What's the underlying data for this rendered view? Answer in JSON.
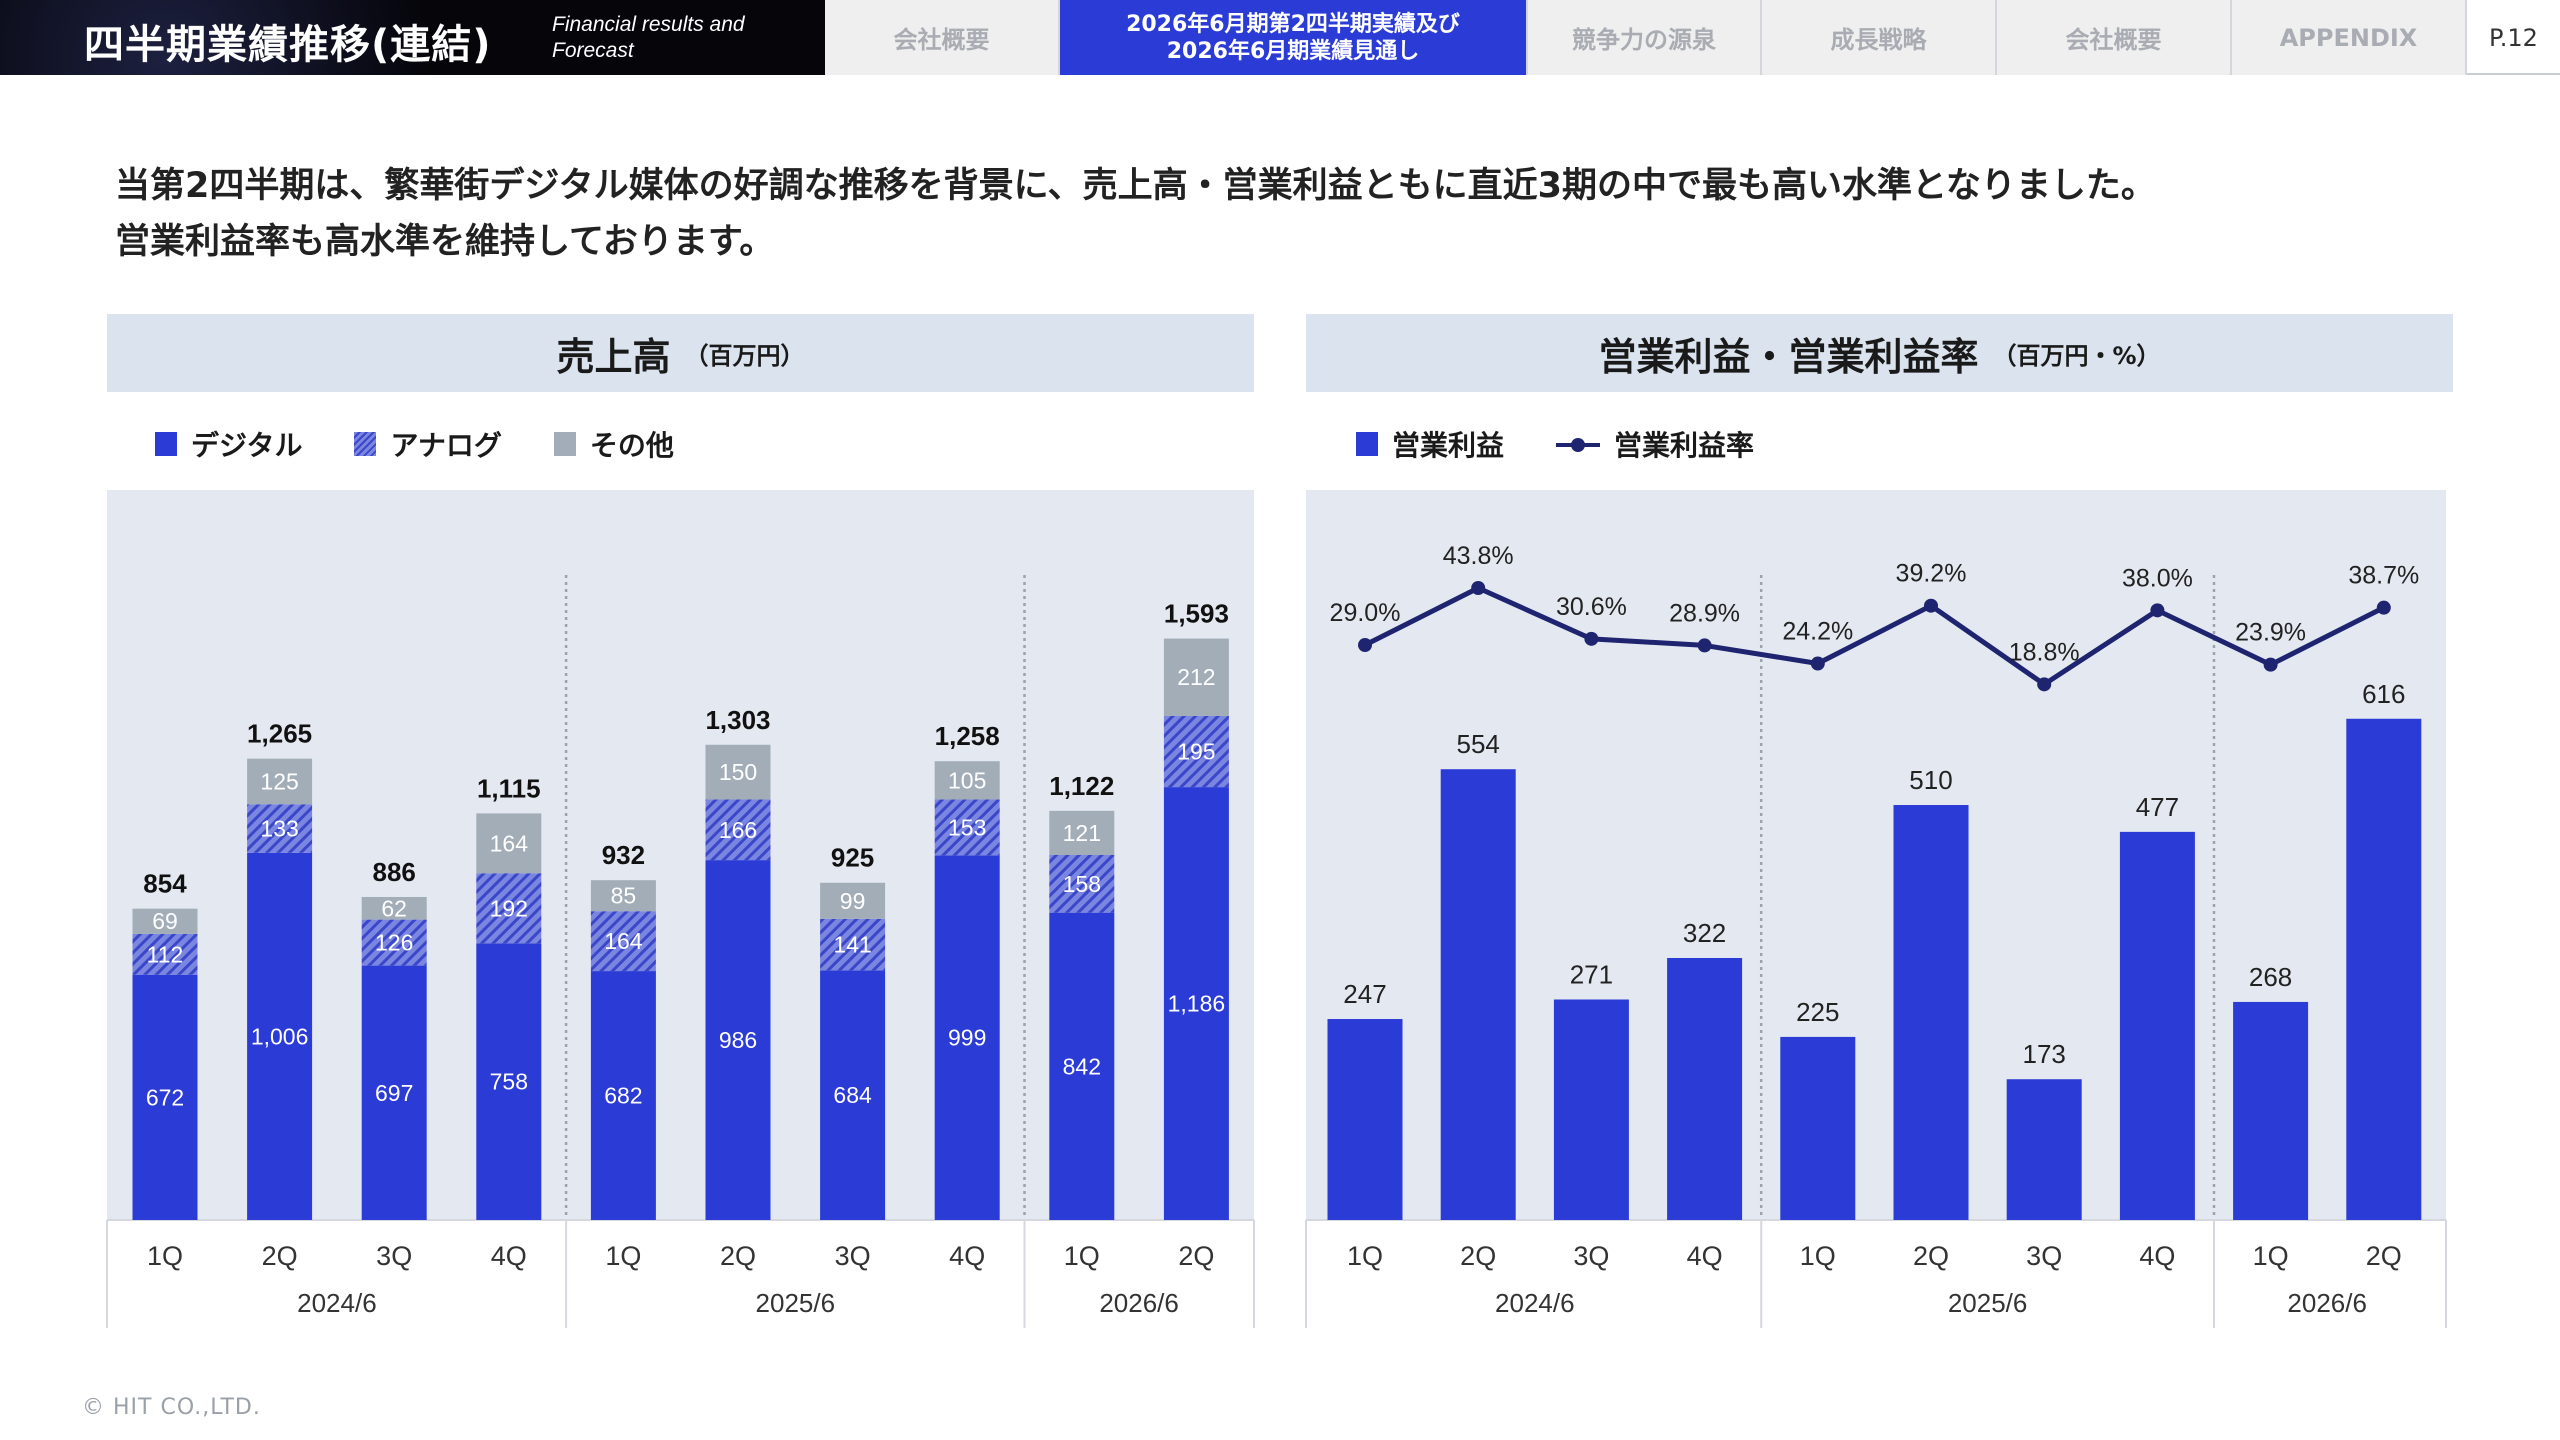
{
  "header": {
    "title": "四半期業績推移(連結)",
    "subtitle": "Financial results and Forecast",
    "tabs": [
      {
        "label": "会社概要",
        "active": false
      },
      {
        "label": "2026年6月期第2四半期実績及び\n2026年6月期業績見通し",
        "active": true
      },
      {
        "label": "競争力の源泉",
        "active": false
      },
      {
        "label": "成長戦略",
        "active": false
      },
      {
        "label": "会社概要",
        "active": false
      },
      {
        "label": "APPENDIX",
        "active": false
      }
    ],
    "page": "P.12"
  },
  "lead": {
    "line1": "当第2四半期は、繁華街デジタル媒体の好調な推移を背景に、売上高・営業利益ともに直近3期の中で最も高い水準となりました。",
    "line2": "営業利益率も高水準を維持しております。"
  },
  "colors": {
    "digital": "#2b3bd6",
    "analog": "#7b86e0",
    "other": "#a2adb8",
    "line": "#1f2470",
    "plot_bg": "#e4e9f1"
  },
  "chart_data": [
    {
      "type": "bar",
      "stacked": true,
      "title": "売上高",
      "unit": "（百万円）",
      "legend_placement": "top-left",
      "categories": [
        "1Q",
        "2Q",
        "3Q",
        "4Q",
        "1Q",
        "2Q",
        "3Q",
        "4Q",
        "1Q",
        "2Q"
      ],
      "groups": [
        {
          "label": "2024/6",
          "count": 4
        },
        {
          "label": "2025/6",
          "count": 4
        },
        {
          "label": "2026/6",
          "count": 2
        }
      ],
      "series": [
        {
          "name": "デジタル",
          "values": [
            672,
            1006,
            697,
            758,
            682,
            986,
            684,
            999,
            842,
            1186
          ]
        },
        {
          "name": "アナログ",
          "values": [
            112,
            133,
            126,
            192,
            164,
            166,
            141,
            153,
            158,
            195
          ]
        },
        {
          "name": "その他",
          "values": [
            69,
            125,
            62,
            164,
            85,
            150,
            99,
            105,
            121,
            212
          ]
        }
      ],
      "totals": [
        "854",
        "1,265",
        "886",
        "1,115",
        "932",
        "1,303",
        "925",
        "1,258",
        "1,122",
        "1,593"
      ],
      "digital_labels": [
        "672",
        "1,006",
        "697",
        "758",
        "682",
        "986",
        "684",
        "999",
        "842",
        "1,186"
      ]
    },
    {
      "type": "bar+line",
      "title": "営業利益・営業利益率",
      "unit": "（百万円・%）",
      "legend_placement": "top-left",
      "categories": [
        "1Q",
        "2Q",
        "3Q",
        "4Q",
        "1Q",
        "2Q",
        "3Q",
        "4Q",
        "1Q",
        "2Q"
      ],
      "groups": [
        {
          "label": "2024/6",
          "count": 4
        },
        {
          "label": "2025/6",
          "count": 4
        },
        {
          "label": "2026/6",
          "count": 2
        }
      ],
      "series": [
        {
          "name": "営業利益",
          "type": "bar",
          "values": [
            247,
            554,
            271,
            322,
            225,
            510,
            173,
            477,
            268,
            616
          ]
        },
        {
          "name": "営業利益率",
          "type": "line",
          "values": [
            29.0,
            43.8,
            30.6,
            28.9,
            24.2,
            39.2,
            18.8,
            38.0,
            23.9,
            38.7
          ],
          "labels": [
            "29.0%",
            "43.8%",
            "30.6%",
            "28.9%",
            "24.2%",
            "39.2%",
            "18.8%",
            "38.0%",
            "23.9%",
            "38.7%"
          ]
        }
      ]
    }
  ],
  "footer": "© HIT CO.,LTD."
}
